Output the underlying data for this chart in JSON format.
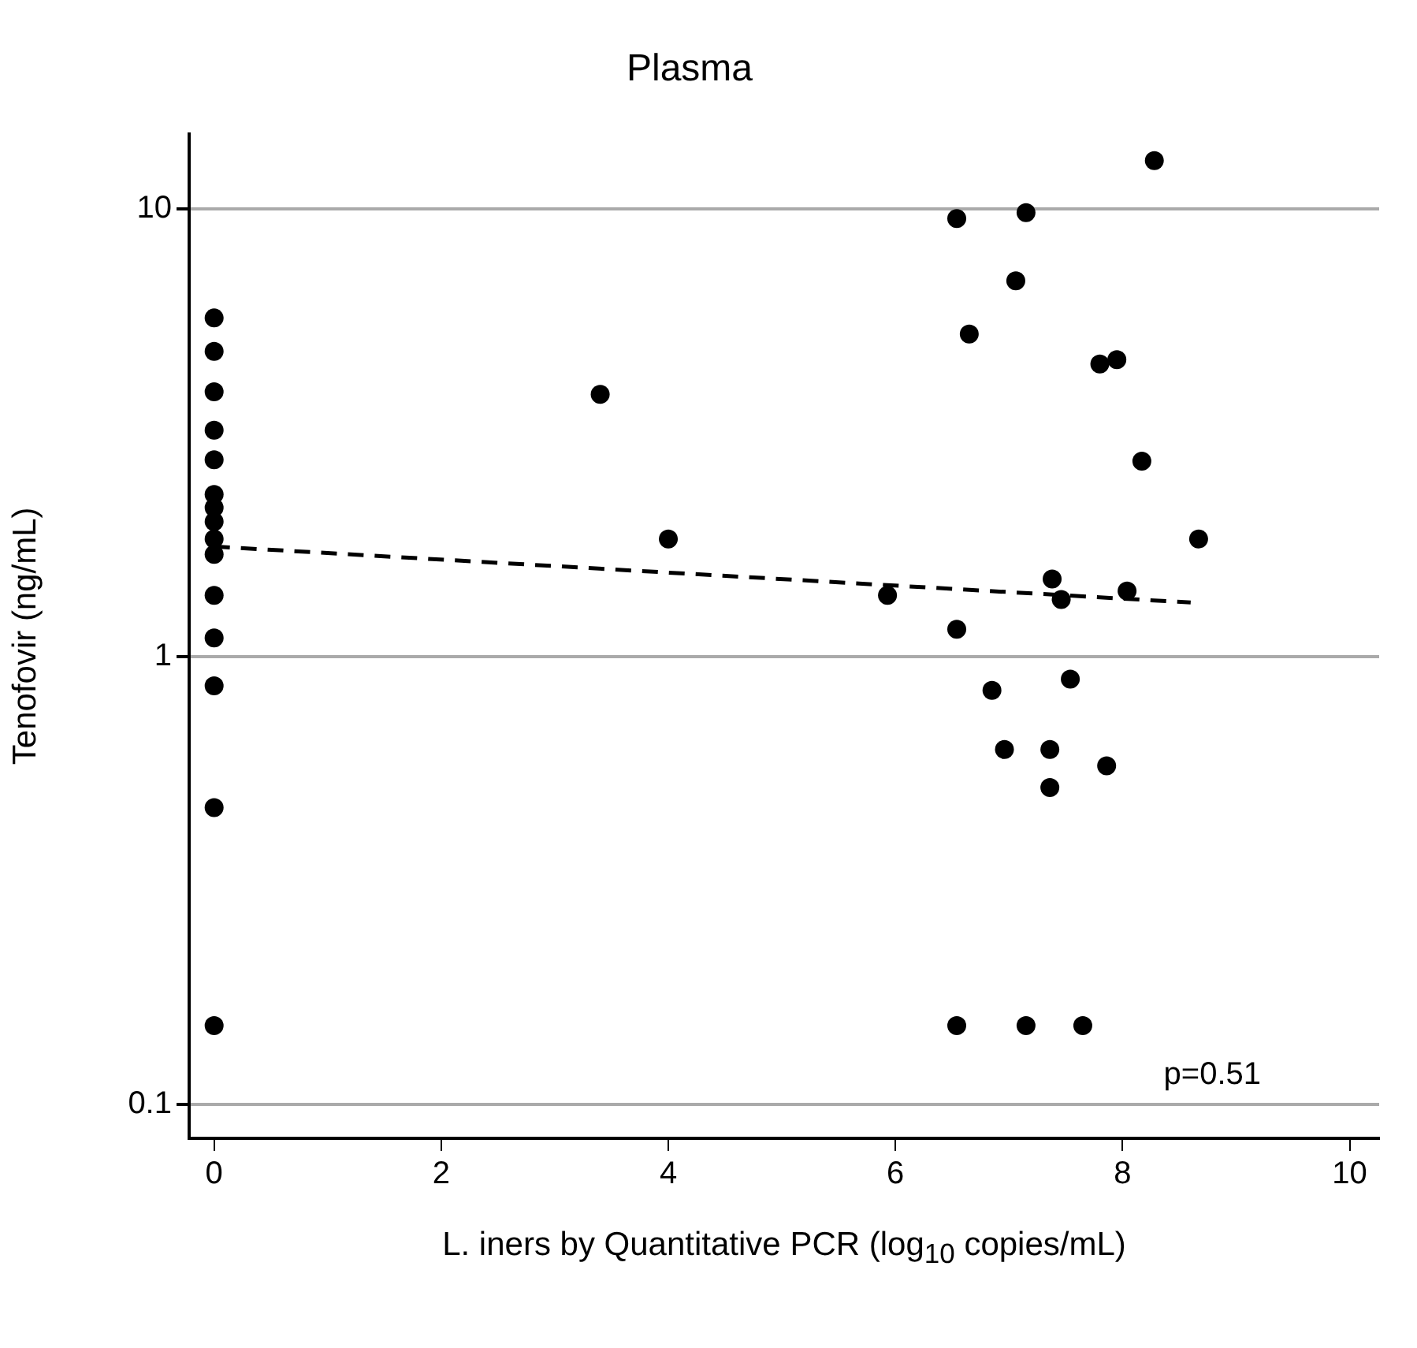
{
  "chart_data": {
    "type": "scatter",
    "title": "Plasma",
    "xlabel": "L. iners by Quantitative PCR (log$_{10}$ copies/mL)",
    "ylabel": "Tenofovir (ng/mL)",
    "log": "y",
    "grid": "y",
    "marker": "circle",
    "legend": false,
    "xlim": [
      -0.22,
      10.26
    ],
    "xticks": [
      0,
      2,
      4,
      6,
      8,
      10
    ],
    "ylim": [
      0.084,
      14.7
    ],
    "yticks": [
      0.1,
      1,
      10
    ],
    "annotations": [
      "p=0.51"
    ],
    "series": [
      {
        "color": "#000000",
        "x": [
          0,
          0,
          0,
          0,
          0,
          0,
          0,
          0,
          0,
          0,
          0,
          0,
          0,
          0,
          0,
          3.4,
          4.0,
          5.93,
          8.28,
          6.54,
          7.15,
          7.06,
          6.65,
          7.8,
          7.95,
          8.17,
          8.67,
          7.38,
          7.46,
          8.04,
          6.54,
          7.54,
          6.85,
          6.96,
          7.36,
          7.86,
          7.36,
          6.54,
          7.15,
          7.65
        ],
        "values": [
          5.7,
          4.8,
          3.9,
          3.2,
          2.75,
          2.3,
          2.15,
          2.0,
          1.83,
          1.69,
          1.37,
          1.1,
          0.86,
          0.46,
          0.15,
          3.85,
          1.83,
          1.37,
          12.8,
          9.5,
          9.8,
          6.9,
          5.25,
          4.5,
          4.6,
          2.73,
          1.83,
          1.49,
          1.34,
          1.4,
          1.15,
          0.89,
          0.84,
          0.62,
          0.62,
          0.57,
          0.51,
          0.15,
          0.15,
          0.15
        ]
      },
      {
        "type": "line",
        "color": "#000000",
        "line_style": "dashed",
        "marker": "none",
        "x": [
          0,
          8.6
        ],
        "values": [
          1.76,
          1.32
        ]
      }
    ]
  }
}
